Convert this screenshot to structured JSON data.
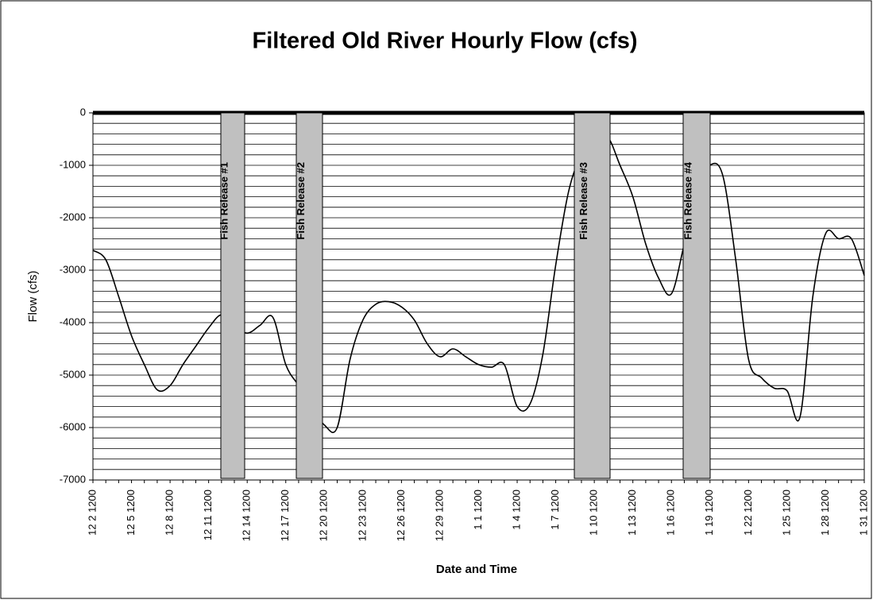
{
  "chart_data": {
    "type": "line",
    "title": "Filtered Old River Hourly Flow (cfs)",
    "x_label": "Date and Time",
    "y_label": "Flow (cfs)",
    "categories": [
      "12 2 1200",
      null,
      null,
      "12 5 1200",
      null,
      null,
      "12 8 1200",
      null,
      null,
      "12 11 1200",
      null,
      null,
      "12 14 1200",
      null,
      null,
      "12 17 1200",
      null,
      null,
      "12 20 1200",
      null,
      null,
      "12 23 1200",
      null,
      null,
      "12 26 1200",
      null,
      null,
      "12 29 1200",
      null,
      null,
      "1 1 1200",
      null,
      null,
      "1 4 1200",
      null,
      null,
      "1 7 1200",
      null,
      null,
      "1 10 1200",
      null,
      null,
      "1 13 1200",
      null,
      null,
      "1 16 1200",
      null,
      null,
      "1 19 1200",
      null,
      null,
      "1 22 1200",
      null,
      null,
      "1 25 1200",
      null,
      null,
      "1 28 1200",
      null,
      null,
      "1 31 1200"
    ],
    "values": [
      -2620,
      -2800,
      -3500,
      -4250,
      -4800,
      -5280,
      -5200,
      -4800,
      -4450,
      -4100,
      -3850,
      -4050,
      -4200,
      -4050,
      -3900,
      -4800,
      -5200,
      -5600,
      -5950,
      -6000,
      -4700,
      -3950,
      -3650,
      -3600,
      -3700,
      -3950,
      -4400,
      -4650,
      -4500,
      -4650,
      -4800,
      -4850,
      -4800,
      -5600,
      -5550,
      -4600,
      -2900,
      -1500,
      -800,
      -600,
      -450,
      -1000,
      -1600,
      -2500,
      -3150,
      -3450,
      -2500,
      -1500,
      -1000,
      -1200,
      -2800,
      -4700,
      -5050,
      -5250,
      -5300,
      -5800,
      -3500,
      -2300,
      -2400,
      -2400,
      -3100
    ],
    "color": "#000000",
    "ylim": [
      -7000,
      0
    ],
    "yticks": [
      0,
      -1000,
      -2000,
      -3000,
      -4000,
      -5000,
      -6000,
      -7000
    ],
    "grid": true,
    "grid_minor_step": 200,
    "annotations": [
      "Fish Release #1",
      "Fish Release #2",
      "Fish Release #3",
      "Fish Release #4"
    ]
  }
}
